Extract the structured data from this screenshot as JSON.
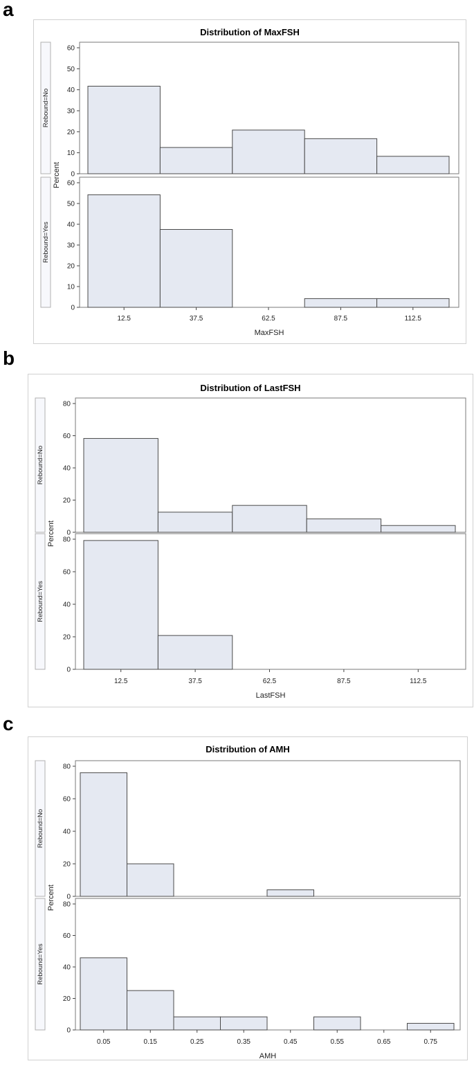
{
  "panels": [
    {
      "letter": "a"
    },
    {
      "letter": "b"
    },
    {
      "letter": "c"
    }
  ],
  "chart_data": [
    {
      "type": "bar",
      "title": "Distribution of MaxFSH",
      "xlabel": "MaxFSH",
      "ylabel": "Percent",
      "categories": [
        "12.5",
        "37.5",
        "62.5",
        "87.5",
        "112.5"
      ],
      "ylim": [
        0,
        60
      ],
      "yticks": [
        0,
        10,
        20,
        30,
        40,
        50,
        60
      ],
      "series": [
        {
          "name": "Rebound=No",
          "values": [
            41.7,
            12.5,
            20.8,
            16.7,
            8.3
          ]
        },
        {
          "name": "Rebound=Yes",
          "values": [
            54.2,
            37.5,
            0,
            4.2,
            4.2
          ]
        }
      ]
    },
    {
      "type": "bar",
      "title": "Distribution of LastFSH",
      "xlabel": "LastFSH",
      "ylabel": "Percent",
      "categories": [
        "12.5",
        "37.5",
        "62.5",
        "87.5",
        "112.5"
      ],
      "ylim": [
        0,
        80
      ],
      "yticks": [
        0,
        20,
        40,
        60,
        80
      ],
      "series": [
        {
          "name": "Rebound=No",
          "values": [
            58.3,
            12.5,
            16.7,
            8.3,
            4.2
          ]
        },
        {
          "name": "Rebound=Yes",
          "values": [
            79.2,
            20.8,
            0,
            0,
            0
          ]
        }
      ]
    },
    {
      "type": "bar",
      "title": "Distribution of AMH",
      "xlabel": "AMH",
      "ylabel": "Percent",
      "categories": [
        "0.05",
        "0.15",
        "0.25",
        "0.35",
        "0.45",
        "0.55",
        "0.65",
        "0.75"
      ],
      "ylim": [
        0,
        80
      ],
      "yticks": [
        0,
        20,
        40,
        60,
        80
      ],
      "series": [
        {
          "name": "Rebound=No",
          "values": [
            76,
            20,
            0,
            0,
            4,
            0,
            0,
            0
          ]
        },
        {
          "name": "Rebound=Yes",
          "values": [
            45.8,
            25,
            8.3,
            8.3,
            0,
            8.3,
            0,
            4.2
          ]
        }
      ]
    }
  ]
}
